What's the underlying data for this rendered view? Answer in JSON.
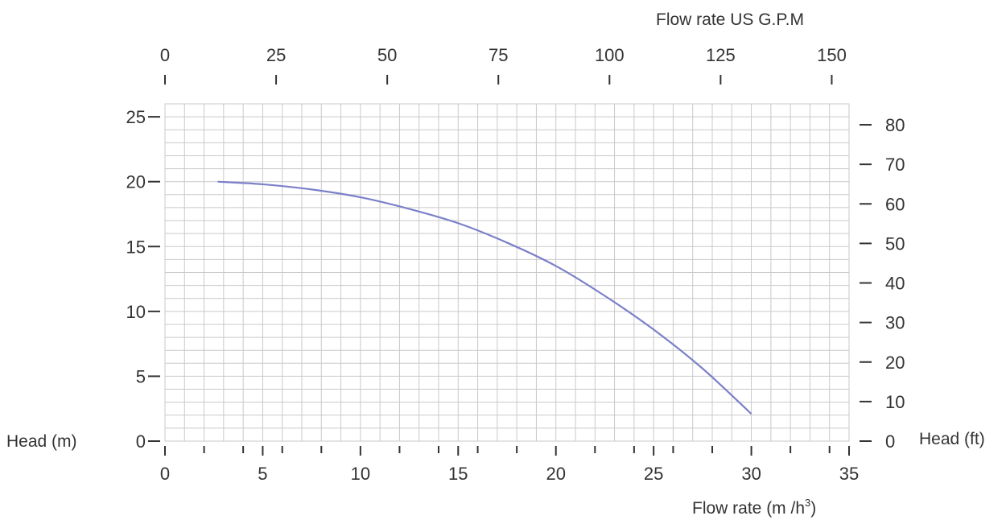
{
  "chart_data": {
    "type": "line",
    "title": "",
    "xlabel": "Flow rate  (m /h",
    "xlabel_sup": "3",
    "xlabel_close": ")",
    "x2label": "Flow rate US  G.P.M",
    "ylabel": "Head (m)",
    "y2label": "Head (ft)",
    "xlim": [
      0,
      35
    ],
    "ylim": [
      0,
      26
    ],
    "x2lim": [
      0,
      153.9
    ],
    "y2lim": [
      0,
      85.3
    ],
    "x_ticks": [
      0,
      5,
      10,
      15,
      20,
      25,
      30,
      35
    ],
    "x_minor_ticks": [
      2,
      4,
      6,
      8,
      12,
      14,
      16,
      18,
      22,
      24,
      26,
      28,
      32,
      34
    ],
    "y_ticks": [
      0,
      5,
      10,
      15,
      20,
      25
    ],
    "x2_ticks": [
      0,
      25,
      50,
      75,
      100,
      125,
      150
    ],
    "y2_ticks": [
      0,
      10,
      20,
      30,
      40,
      50,
      60,
      70,
      80
    ],
    "grid": true,
    "grid_x_step": 1,
    "grid_y_step": 1,
    "series": [
      {
        "name": "",
        "color": "#7b80c8",
        "x": [
          2.7,
          5,
          7.5,
          10,
          12.5,
          15,
          17.5,
          20,
          22.5,
          25,
          27.5,
          30
        ],
        "y": [
          20.0,
          19.8,
          19.4,
          18.8,
          17.9,
          16.8,
          15.3,
          13.5,
          11.2,
          8.6,
          5.6,
          2.1
        ]
      }
    ]
  }
}
